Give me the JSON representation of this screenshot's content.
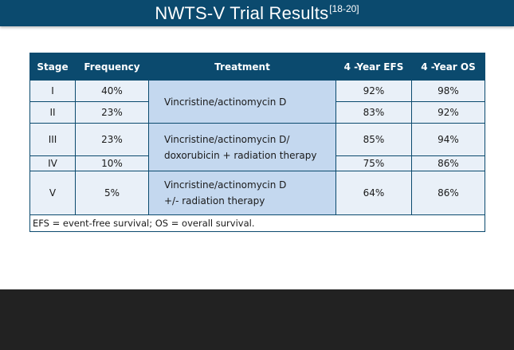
{
  "header": {
    "title": "NWTS-V Trial Results",
    "ref": "[18-20]"
  },
  "table": {
    "columns": [
      "Stage",
      "Frequency",
      "Treatment",
      "4 -Year EFS",
      "4 -Year OS"
    ],
    "rows": [
      {
        "stage": "I",
        "frequency": "40%",
        "efs": "92%",
        "os": "98%"
      },
      {
        "stage": "II",
        "frequency": "23%",
        "efs": "83%",
        "os": "92%"
      },
      {
        "stage": "III",
        "frequency": "23%",
        "efs": "85%",
        "os": "94%"
      },
      {
        "stage": "IV",
        "frequency": "10%",
        "efs": "75%",
        "os": "86%"
      },
      {
        "stage": "V",
        "frequency": "5%",
        "efs": "64%",
        "os": "86%"
      }
    ],
    "treatments": [
      {
        "line1": "Vincristine/actinomycin D",
        "line2": ""
      },
      {
        "line1": "Vincristine/actinomycin D/",
        "line2": "doxorubicin + radiation therapy"
      },
      {
        "line1": "Vincristine/actinomycin D",
        "line2": "+/- radiation therapy"
      }
    ],
    "footnote": "EFS = event-free survival; OS = overall survival."
  },
  "colors": {
    "header_bg": "#0b4a6e",
    "cell_bg": "#e9f0f8",
    "treatment_bg": "#c4d8ef",
    "footer_bg": "#222222"
  }
}
